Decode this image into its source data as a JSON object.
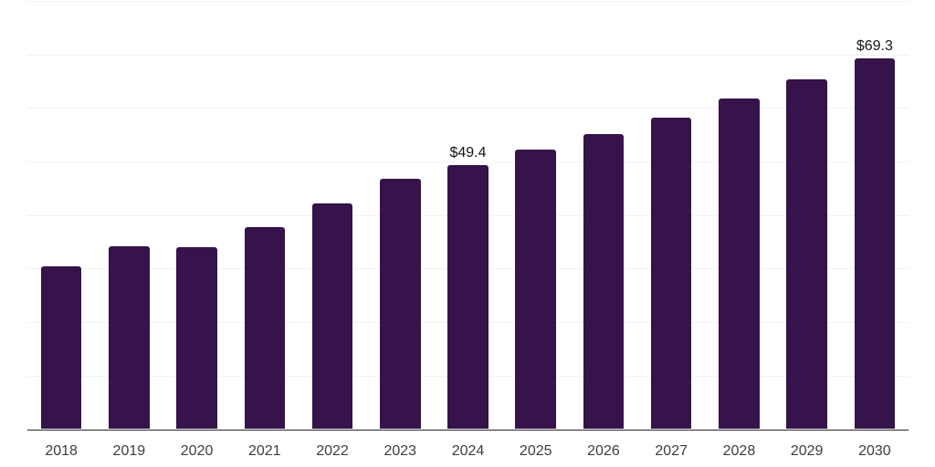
{
  "chart_data": {
    "type": "bar",
    "title": "",
    "xlabel": "",
    "ylabel": "",
    "categories": [
      "2018",
      "2019",
      "2020",
      "2021",
      "2022",
      "2023",
      "2024",
      "2025",
      "2026",
      "2027",
      "2028",
      "2029",
      "2030"
    ],
    "values": [
      30.5,
      34.1,
      34.0,
      37.7,
      42.1,
      46.7,
      49.4,
      52.3,
      55.2,
      58.2,
      61.8,
      65.4,
      69.3
    ],
    "data_labels": [
      null,
      null,
      null,
      null,
      null,
      null,
      "$49.4",
      null,
      null,
      null,
      null,
      null,
      "$69.3"
    ],
    "ylim": [
      0,
      80
    ],
    "grid_step": 10,
    "grid": true,
    "legend_position": "none",
    "bar_color": "#36134B",
    "grid_color": "#F2F2F2",
    "axis_color": "#262626",
    "tick_label_color": "#3D3D3D",
    "data_label_color": "#141414",
    "background_color": "#FFFFFF"
  }
}
